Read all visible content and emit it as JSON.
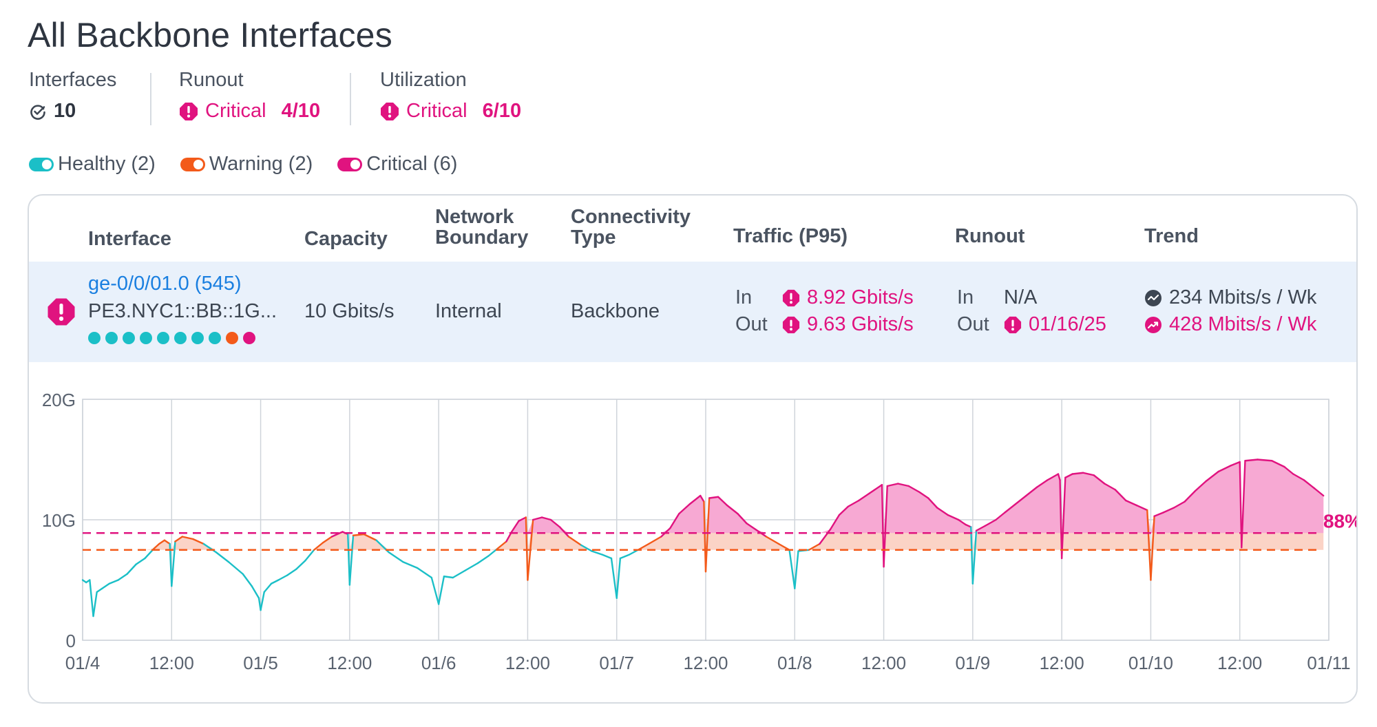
{
  "page_title": "All Backbone Interfaces",
  "summary": {
    "interfaces_label": "Interfaces",
    "interfaces_value": "10",
    "runout_label": "Runout",
    "runout_status": "Critical",
    "runout_count": "4/10",
    "utilization_label": "Utilization",
    "utilization_status": "Critical",
    "utilization_count": "6/10"
  },
  "legend": [
    {
      "label": "Healthy (2)",
      "color": "#1bbfc7"
    },
    {
      "label": "Warning (2)",
      "color": "#f35a1a"
    },
    {
      "label": "Critical (6)",
      "color": "#e0137f"
    }
  ],
  "table": {
    "headers": {
      "interface": "Interface",
      "capacity": "Capacity",
      "boundary_1": "Network",
      "boundary_2": "Boundary",
      "connectivity_1": "Connectivity",
      "connectivity_2": "Type",
      "traffic": "Traffic (P95)",
      "runout": "Runout",
      "trend": "Trend"
    },
    "row": {
      "interface_id": "ge-0/0/01.0 (545)",
      "interface_name": "PE3.NYC1::BB::1G...",
      "health_dots": [
        "#1bbfc7",
        "#1bbfc7",
        "#1bbfc7",
        "#1bbfc7",
        "#1bbfc7",
        "#1bbfc7",
        "#1bbfc7",
        "#1bbfc7",
        "#f35a1a",
        "#e0137f"
      ],
      "capacity": "10 Gbits/s",
      "boundary": "Internal",
      "connectivity": "Backbone",
      "traffic_in_label": "In",
      "traffic_in": "8.92 Gbits/s",
      "traffic_out_label": "Out",
      "traffic_out": "9.63 Gbits/s",
      "runout_in_label": "In",
      "runout_in": "N/A",
      "runout_out_label": "Out",
      "runout_out": "01/16/25",
      "trend_in": "234 Mbits/s / Wk",
      "trend_out": "428 Mbits/s / Wk"
    }
  },
  "colors": {
    "healthy": "#1bbfc7",
    "warning": "#f35a1a",
    "critical": "#e0137f",
    "critical_fill": "#f7a9d3",
    "warning_fill": "#fbd3c6"
  },
  "chart_data": {
    "type": "line",
    "y_ticks": [
      "20G",
      "10G",
      "0"
    ],
    "ylim": [
      0,
      20
    ],
    "x_ticks": [
      "01/4",
      "12:00",
      "01/5",
      "12:00",
      "01/6",
      "12:00",
      "01/7",
      "12:00",
      "01/8",
      "12:00",
      "01/9",
      "12:00",
      "01/10",
      "12:00",
      "01/11"
    ],
    "xlim_days": [
      0,
      7
    ],
    "thresholds": [
      {
        "name": "critical",
        "value": 8.9
      },
      {
        "name": "warning",
        "value": 7.5
      }
    ],
    "threshold_label": "88%",
    "series": [
      {
        "unit": "Gbits/s",
        "points": [
          [
            0.0,
            5.0
          ],
          [
            0.02,
            4.8
          ],
          [
            0.04,
            5.0
          ],
          [
            0.06,
            2.0
          ],
          [
            0.08,
            4.0
          ],
          [
            0.11,
            4.3
          ],
          [
            0.15,
            4.7
          ],
          [
            0.2,
            5.0
          ],
          [
            0.25,
            5.5
          ],
          [
            0.3,
            6.3
          ],
          [
            0.35,
            6.8
          ],
          [
            0.4,
            7.6
          ],
          [
            0.43,
            8.0
          ],
          [
            0.46,
            8.3
          ],
          [
            0.49,
            8.0
          ],
          [
            0.5,
            4.5
          ],
          [
            0.52,
            8.2
          ],
          [
            0.56,
            8.6
          ],
          [
            0.62,
            8.4
          ],
          [
            0.68,
            8.0
          ],
          [
            0.75,
            7.3
          ],
          [
            0.82,
            6.5
          ],
          [
            0.9,
            5.5
          ],
          [
            0.95,
            4.5
          ],
          [
            0.99,
            3.5
          ],
          [
            1.0,
            2.5
          ],
          [
            1.02,
            4.0
          ],
          [
            1.06,
            4.7
          ],
          [
            1.1,
            5.0
          ],
          [
            1.15,
            5.4
          ],
          [
            1.2,
            5.9
          ],
          [
            1.25,
            6.6
          ],
          [
            1.3,
            7.5
          ],
          [
            1.35,
            8.1
          ],
          [
            1.4,
            8.6
          ],
          [
            1.46,
            9.0
          ],
          [
            1.49,
            8.8
          ],
          [
            1.5,
            4.6
          ],
          [
            1.52,
            8.7
          ],
          [
            1.58,
            8.8
          ],
          [
            1.65,
            8.3
          ],
          [
            1.72,
            7.3
          ],
          [
            1.8,
            6.5
          ],
          [
            1.88,
            6.0
          ],
          [
            1.96,
            5.2
          ],
          [
            2.0,
            3.0
          ],
          [
            2.03,
            5.3
          ],
          [
            2.08,
            5.2
          ],
          [
            2.15,
            5.8
          ],
          [
            2.22,
            6.4
          ],
          [
            2.28,
            7.0
          ],
          [
            2.33,
            7.6
          ],
          [
            2.38,
            8.2
          ],
          [
            2.41,
            9.0
          ],
          [
            2.45,
            9.9
          ],
          [
            2.49,
            10.2
          ],
          [
            2.5,
            5.0
          ],
          [
            2.53,
            10.0
          ],
          [
            2.58,
            10.2
          ],
          [
            2.63,
            10.0
          ],
          [
            2.68,
            9.4
          ],
          [
            2.73,
            8.6
          ],
          [
            2.8,
            7.9
          ],
          [
            2.86,
            7.4
          ],
          [
            2.92,
            7.1
          ],
          [
            2.97,
            6.8
          ],
          [
            3.0,
            3.5
          ],
          [
            3.02,
            6.8
          ],
          [
            3.07,
            7.1
          ],
          [
            3.12,
            7.5
          ],
          [
            3.18,
            8.0
          ],
          [
            3.25,
            8.6
          ],
          [
            3.3,
            9.3
          ],
          [
            3.35,
            10.5
          ],
          [
            3.41,
            11.3
          ],
          [
            3.47,
            12.0
          ],
          [
            3.49,
            11.5
          ],
          [
            3.5,
            5.7
          ],
          [
            3.52,
            11.8
          ],
          [
            3.57,
            11.9
          ],
          [
            3.62,
            11.2
          ],
          [
            3.68,
            10.5
          ],
          [
            3.73,
            9.7
          ],
          [
            3.78,
            9.2
          ],
          [
            3.84,
            8.6
          ],
          [
            3.91,
            8.0
          ],
          [
            3.97,
            7.5
          ],
          [
            4.0,
            4.3
          ],
          [
            4.02,
            7.4
          ],
          [
            4.08,
            7.5
          ],
          [
            4.14,
            8.0
          ],
          [
            4.2,
            9.2
          ],
          [
            4.25,
            10.4
          ],
          [
            4.3,
            11.1
          ],
          [
            4.36,
            11.6
          ],
          [
            4.42,
            12.2
          ],
          [
            4.49,
            12.9
          ],
          [
            4.5,
            6.1
          ],
          [
            4.52,
            12.8
          ],
          [
            4.58,
            13.0
          ],
          [
            4.64,
            12.8
          ],
          [
            4.7,
            12.3
          ],
          [
            4.75,
            11.8
          ],
          [
            4.8,
            11.0
          ],
          [
            4.86,
            10.4
          ],
          [
            4.92,
            10.0
          ],
          [
            4.96,
            9.6
          ],
          [
            4.99,
            9.4
          ],
          [
            5.0,
            4.7
          ],
          [
            5.02,
            9.1
          ],
          [
            5.07,
            9.5
          ],
          [
            5.13,
            10.0
          ],
          [
            5.18,
            10.6
          ],
          [
            5.24,
            11.3
          ],
          [
            5.3,
            12.0
          ],
          [
            5.36,
            12.7
          ],
          [
            5.42,
            13.3
          ],
          [
            5.48,
            13.8
          ],
          [
            5.49,
            13.3
          ],
          [
            5.5,
            6.8
          ],
          [
            5.52,
            13.5
          ],
          [
            5.56,
            13.8
          ],
          [
            5.62,
            13.9
          ],
          [
            5.68,
            13.7
          ],
          [
            5.74,
            13.0
          ],
          [
            5.8,
            12.5
          ],
          [
            5.86,
            11.6
          ],
          [
            5.92,
            11.2
          ],
          [
            5.98,
            10.8
          ],
          [
            6.0,
            5.0
          ],
          [
            6.02,
            10.3
          ],
          [
            6.07,
            10.6
          ],
          [
            6.13,
            11.0
          ],
          [
            6.19,
            11.5
          ],
          [
            6.25,
            12.4
          ],
          [
            6.31,
            13.2
          ],
          [
            6.38,
            14.0
          ],
          [
            6.45,
            14.5
          ],
          [
            6.5,
            14.8
          ],
          [
            6.51,
            7.7
          ],
          [
            6.53,
            14.9
          ],
          [
            6.6,
            15.0
          ],
          [
            6.68,
            14.9
          ],
          [
            6.75,
            14.4
          ],
          [
            6.8,
            13.8
          ],
          [
            6.86,
            13.3
          ],
          [
            6.92,
            12.6
          ],
          [
            6.97,
            12.0
          ]
        ]
      }
    ]
  }
}
